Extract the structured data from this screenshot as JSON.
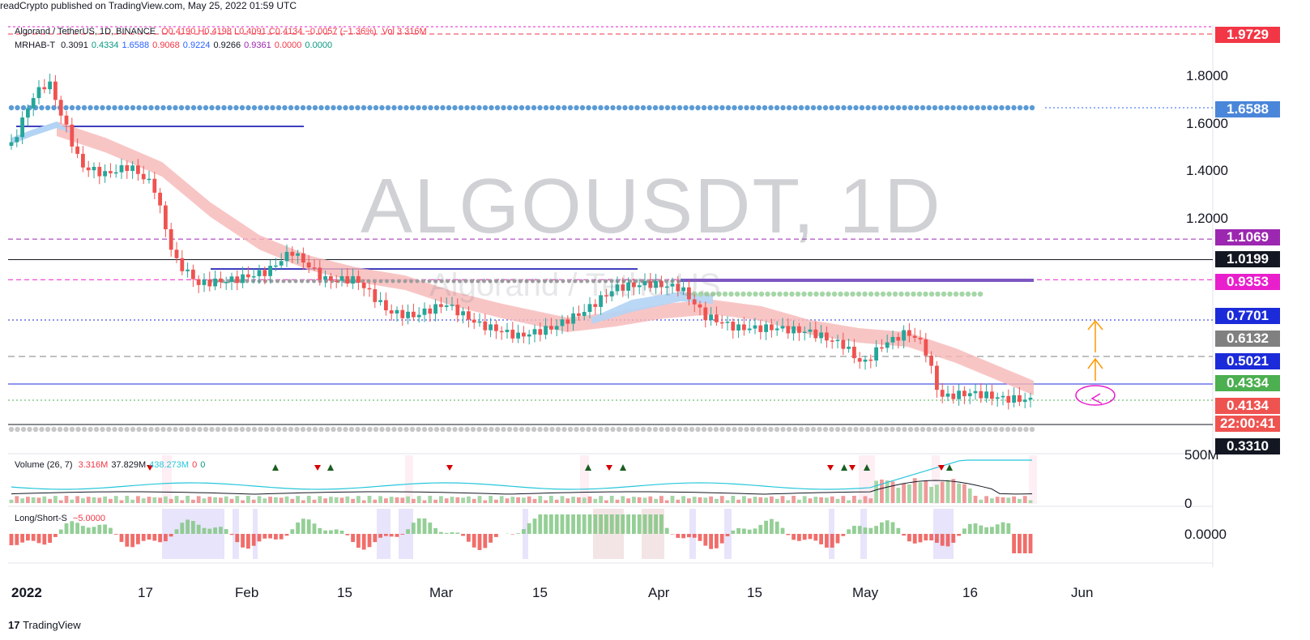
{
  "attribution": "readCrypto published on TradingView.com, May 25, 2022 01:59 UTC",
  "watermark": {
    "symbol": "ALGOUSDT, 1D",
    "description": "Algorand / TetherUS"
  },
  "legend": {
    "symbol_line": "Algorand / TetherUS, 1D, BINANCE",
    "ohlc": "O0.4190 H0.4198 L0.4091 C0.4134 −0.0057 (−1.36%)",
    "volume": "Vol 3.316M",
    "indicator_name": "MRHAB-T",
    "indicator_values": [
      "0.3091",
      "0.4334",
      "1.6588",
      "0.9068",
      "0.9224",
      "0.9266",
      "0.9361",
      "0.0000",
      "0.0000"
    ],
    "indicator_colors": [
      "#131722",
      "#089981",
      "#2962ff",
      "#f23645",
      "#2962ff",
      "#131722",
      "#9c27b0",
      "#f23645",
      "#089981"
    ]
  },
  "price_axis": {
    "ticks": [
      "1.8000",
      "1.6000",
      "1.4000",
      "1.2000"
    ],
    "labels": [
      {
        "value": "1.9729",
        "color": "#f23645"
      },
      {
        "value": "1.6588",
        "color": "#4a86d9"
      },
      {
        "value": "1.1069",
        "color": "#9c27b0"
      },
      {
        "value": "1.0199",
        "color": "#131722"
      },
      {
        "value": "0.9353",
        "color": "#e91ecc"
      },
      {
        "value": "0.7701",
        "color": "#1c2bd9"
      },
      {
        "value": "0.6132",
        "color": "#808080"
      },
      {
        "value": "0.5021",
        "color": "#1c2bd9"
      },
      {
        "value": "0.4334",
        "color": "#4caf50"
      },
      {
        "value": "0.4134",
        "color": "#ef5350"
      },
      {
        "value": "22:00:41",
        "color": "#ef5350"
      },
      {
        "value": "0.3310",
        "color": "#131722"
      }
    ]
  },
  "time_axis": [
    "2022",
    "17",
    "Feb",
    "15",
    "Mar",
    "15",
    "Apr",
    "15",
    "May",
    "16",
    "Jun"
  ],
  "volume_pane": {
    "label": "Volume (26, 7)",
    "values": [
      "3.316M",
      "37.829M",
      "438.273M",
      "0",
      "0"
    ],
    "value_colors": [
      "#f23645",
      "#131722",
      "#26c6da",
      "#f23645",
      "#089981"
    ],
    "axis_ticks": [
      "500M",
      "0"
    ]
  },
  "ls_pane": {
    "label": "Long/Short-S",
    "value": "−5.0000",
    "axis_tick": "0.0000"
  },
  "footer": "TradingView",
  "colors": {
    "bull": "#26a69a",
    "bear": "#ef5350",
    "ribbon_red": "#f6b7b7",
    "ribbon_blue": "#b3d4f5",
    "ribbon_teal": "#a6e1e6"
  }
}
